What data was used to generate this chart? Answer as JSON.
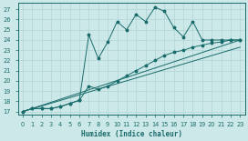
{
  "xlabel": "Humidex (Indice chaleur)",
  "background_color": "#cce8e8",
  "grid_color": "#b0d4d4",
  "line_color": "#1a6b6b",
  "xlim": [
    -0.5,
    23.5
  ],
  "ylim": [
    16.7,
    27.6
  ],
  "yticks": [
    17,
    18,
    19,
    20,
    21,
    22,
    23,
    24,
    25,
    26,
    27
  ],
  "xticks": [
    0,
    1,
    2,
    3,
    4,
    5,
    6,
    7,
    8,
    9,
    10,
    11,
    12,
    13,
    14,
    15,
    16,
    17,
    18,
    19,
    20,
    21,
    22,
    23
  ],
  "line1_x": [
    0,
    1,
    2,
    3,
    4,
    5,
    6,
    7,
    8,
    9,
    10,
    11,
    12,
    13,
    14,
    15,
    16,
    17,
    18,
    19,
    20,
    21,
    22,
    23
  ],
  "line1_y": [
    17.0,
    17.3,
    17.3,
    17.3,
    17.5,
    17.8,
    18.1,
    24.5,
    22.2,
    23.8,
    25.8,
    25.0,
    26.5,
    25.8,
    27.2,
    26.8,
    25.2,
    24.3,
    25.8,
    24.0,
    24.0,
    24.0,
    24.0,
    24.0
  ],
  "line2_x": [
    0,
    1,
    2,
    3,
    4,
    5,
    6,
    7,
    8,
    9,
    10,
    11,
    12,
    13,
    14,
    15,
    16,
    17,
    18,
    19,
    20,
    21,
    22,
    23
  ],
  "line2_y": [
    17.0,
    17.3,
    17.3,
    17.3,
    17.5,
    17.8,
    18.1,
    19.5,
    19.2,
    19.5,
    20.0,
    20.5,
    21.0,
    21.5,
    22.0,
    22.5,
    22.8,
    23.0,
    23.3,
    23.5,
    23.7,
    23.8,
    24.0,
    24.0
  ],
  "line3_x": [
    0,
    23
  ],
  "line3_y": [
    17.0,
    24.0
  ],
  "line4_x": [
    0,
    23
  ],
  "line4_y": [
    17.0,
    23.3
  ]
}
